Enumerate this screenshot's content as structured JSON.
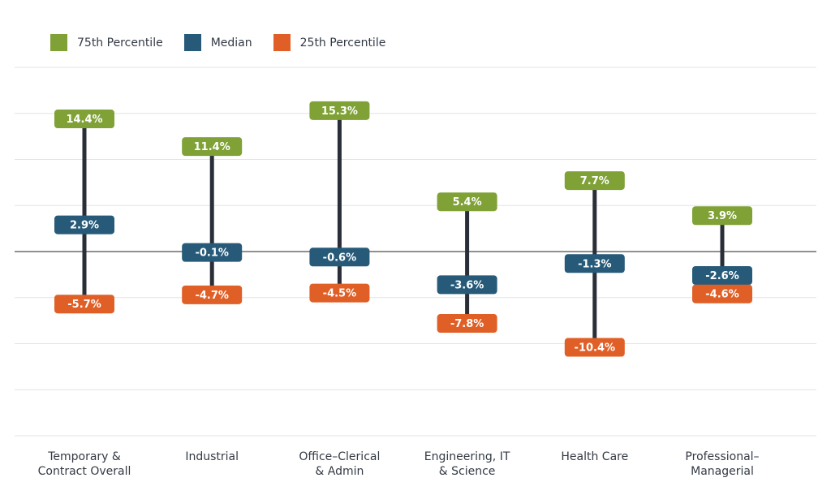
{
  "chart_data": {
    "type": "range",
    "categories": [
      [
        "Temporary &",
        "Contract Overall"
      ],
      [
        "Industrial"
      ],
      [
        "Office–Clerical",
        "& Admin"
      ],
      [
        "Engineering, IT",
        "& Science"
      ],
      [
        "Health Care"
      ],
      [
        "Professional–",
        "Managerial"
      ]
    ],
    "series": [
      {
        "name": "75th Percentile",
        "color": "#7fa136",
        "values": [
          14.4,
          11.4,
          15.3,
          5.4,
          7.7,
          3.9
        ],
        "labels": [
          "14.4%",
          "11.4%",
          "15.3%",
          "5.4%",
          "7.7%",
          "3.9%"
        ]
      },
      {
        "name": "Median",
        "color": "#265a78",
        "values": [
          2.9,
          -0.1,
          -0.6,
          -3.6,
          -1.3,
          -2.6
        ],
        "labels": [
          "2.9%",
          "-0.1%",
          "-0.6%",
          "-3.6%",
          "-1.3%",
          "-2.6%"
        ]
      },
      {
        "name": "25th Percentile",
        "color": "#e05f26",
        "values": [
          -5.7,
          -4.7,
          -4.5,
          -7.8,
          -10.4,
          -4.6
        ],
        "labels": [
          "-5.7%",
          "-4.7%",
          "-4.5%",
          "-7.8%",
          "-10.4%",
          "-4.6%"
        ]
      }
    ],
    "ylim": [
      -20,
      20
    ],
    "grid": true,
    "legend": "top-left",
    "xlabel": "",
    "ylabel": ""
  }
}
